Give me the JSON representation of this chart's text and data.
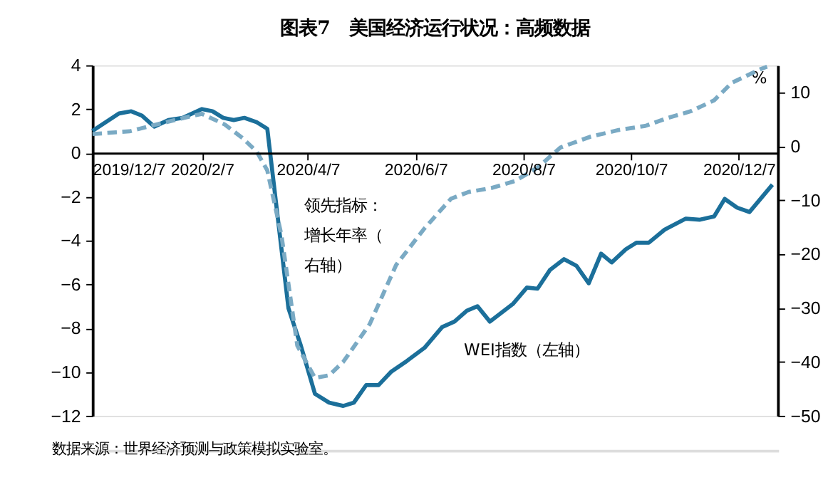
{
  "chart_data": {
    "type": "line",
    "title": "图表7　美国经济运行状况：高频数据",
    "xlim": [
      "2019-12-07",
      "2020-12-29"
    ],
    "xticks": [
      {
        "value": "2019-12-07",
        "label": "2019/12/7"
      },
      {
        "value": "2020-02-07",
        "label": "2020/2/7"
      },
      {
        "value": "2020-04-07",
        "label": "2020/4/7"
      },
      {
        "value": "2020-06-07",
        "label": "2020/6/7"
      },
      {
        "value": "2020-08-07",
        "label": "2020/8/7"
      },
      {
        "value": "2020-10-07",
        "label": "2020/10/7"
      },
      {
        "value": "2020-12-07",
        "label": "2020/12/7"
      }
    ],
    "ylim": [
      -12,
      4
    ],
    "yticks": [
      -12,
      -10,
      -8,
      -6,
      -4,
      -2,
      0,
      2,
      4
    ],
    "y2lim": [
      -50,
      15
    ],
    "y2ticks": [
      -50,
      -40,
      -30,
      -20,
      -10,
      0,
      10
    ],
    "y2label": "%",
    "grid": false,
    "legend": false,
    "marker": "none",
    "series": [
      {
        "name": "WEI指数（左轴）",
        "color": "#1b6f9a",
        "line_style": "solid",
        "axis": "y",
        "x": [
          "2019-12-07",
          "2019-12-22",
          "2019-12-29",
          "2020-01-04",
          "2020-01-11",
          "2020-01-19",
          "2020-01-27",
          "2020-02-07",
          "2020-02-13",
          "2020-02-19",
          "2020-02-25",
          "2020-03-02",
          "2020-03-09",
          "2020-03-15",
          "2020-03-27",
          "2020-04-03",
          "2020-04-11",
          "2020-04-19",
          "2020-04-27",
          "2020-05-03",
          "2020-05-10",
          "2020-05-17",
          "2020-05-24",
          "2020-06-02",
          "2020-06-12",
          "2020-06-22",
          "2020-06-29",
          "2020-07-06",
          "2020-07-12",
          "2020-07-19",
          "2020-08-01",
          "2020-08-09",
          "2020-08-15",
          "2020-08-22",
          "2020-08-30",
          "2020-09-06",
          "2020-09-13",
          "2020-09-20",
          "2020-09-26",
          "2020-10-04",
          "2020-10-10",
          "2020-10-17",
          "2020-10-26",
          "2020-11-07",
          "2020-11-15",
          "2020-11-23",
          "2020-11-29",
          "2020-12-06",
          "2020-12-13",
          "2020-12-26"
        ],
        "values": [
          1.0,
          1.8,
          1.9,
          1.7,
          1.2,
          1.5,
          1.6,
          2.0,
          1.9,
          1.6,
          1.5,
          1.6,
          1.4,
          1.1,
          -7.1,
          -8.8,
          -11.0,
          -11.4,
          -11.55,
          -11.4,
          -10.6,
          -10.6,
          -10.0,
          -9.5,
          -8.9,
          -7.95,
          -7.7,
          -7.2,
          -7.0,
          -7.7,
          -6.9,
          -6.15,
          -6.2,
          -5.35,
          -4.85,
          -5.15,
          -5.95,
          -4.6,
          -5.0,
          -4.4,
          -4.1,
          -4.1,
          -3.5,
          -3.0,
          -3.05,
          -2.9,
          -2.1,
          -2.5,
          -2.7,
          -1.45
        ]
      },
      {
        "name": "领先指标：增长年率（右轴）",
        "color": "#7aaac4",
        "line_style": "dashed",
        "axis": "y2",
        "x": [
          "2019-12-07",
          "2019-12-28",
          "2020-01-12",
          "2020-01-31",
          "2020-02-07",
          "2020-02-20",
          "2020-03-01",
          "2020-03-09",
          "2020-03-15",
          "2020-03-23",
          "2020-04-01",
          "2020-04-11",
          "2020-04-19",
          "2020-04-27",
          "2020-05-12",
          "2020-05-27",
          "2020-06-12",
          "2020-06-27",
          "2020-07-07",
          "2020-07-20",
          "2020-08-02",
          "2020-08-15",
          "2020-08-28",
          "2020-09-14",
          "2020-09-30",
          "2020-10-15",
          "2020-10-28",
          "2020-11-10",
          "2020-11-23",
          "2020-12-03",
          "2020-12-19",
          "2020-12-23"
        ],
        "values": [
          2.25,
          2.75,
          4,
          5.5,
          6,
          4,
          1.5,
          -1,
          -4.5,
          -16.5,
          -37,
          -43,
          -42.5,
          -40,
          -33,
          -22,
          -15.25,
          -9.75,
          -8.5,
          -7.75,
          -6.5,
          -4,
          -0.25,
          1.75,
          3,
          3.75,
          5.25,
          6.5,
          8.5,
          11.75,
          14.25,
          14.75
        ]
      }
    ],
    "annotations": [
      "数据来源：世界经济预测与政策模拟实验室。"
    ]
  }
}
